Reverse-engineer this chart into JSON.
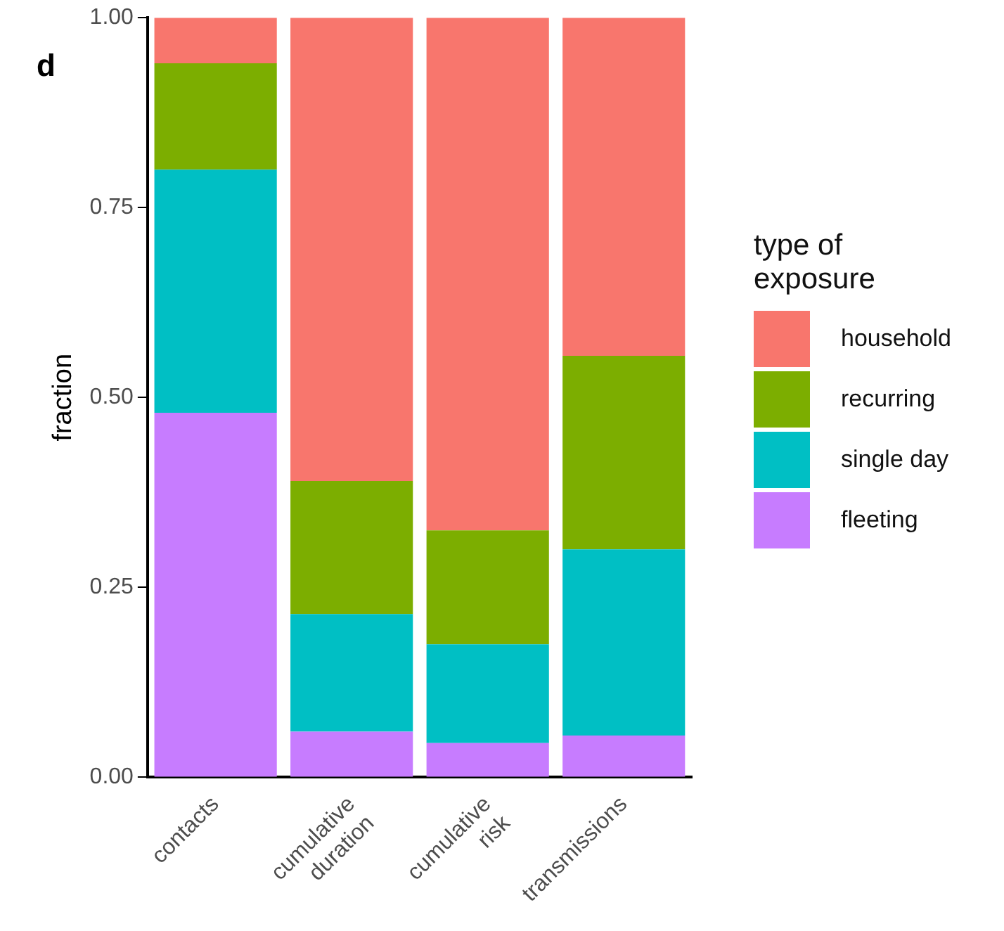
{
  "chart_data": {
    "type": "bar",
    "title": "d",
    "ylabel": "fraction",
    "legend_title": "type of exposure",
    "legend": "right",
    "stacked": true,
    "grid": false,
    "categories": [
      "contacts",
      "cumulative duration",
      "cumulative risk",
      "transmissions"
    ],
    "ylim": [
      0,
      1
    ],
    "yticks": [
      {
        "value": 0,
        "label": "0.00"
      },
      {
        "value": 0.25,
        "label": "0.25"
      },
      {
        "value": 0.5,
        "label": "0.50"
      },
      {
        "value": 0.75,
        "label": "0.75"
      },
      {
        "value": 1,
        "label": "1.00"
      }
    ],
    "series": [
      {
        "name": "fleeting",
        "color": "#c77cff",
        "values": [
          0.48,
          0.06,
          0.045,
          0.055
        ]
      },
      {
        "name": "single day",
        "color": "#00bfc4",
        "values": [
          0.32,
          0.155,
          0.13,
          0.245
        ]
      },
      {
        "name": "recurring",
        "color": "#7cae00",
        "values": [
          0.14,
          0.175,
          0.15,
          0.255
        ]
      },
      {
        "name": "household",
        "color": "#f8766d",
        "values": [
          0.06,
          0.61,
          0.675,
          0.445
        ]
      }
    ]
  }
}
